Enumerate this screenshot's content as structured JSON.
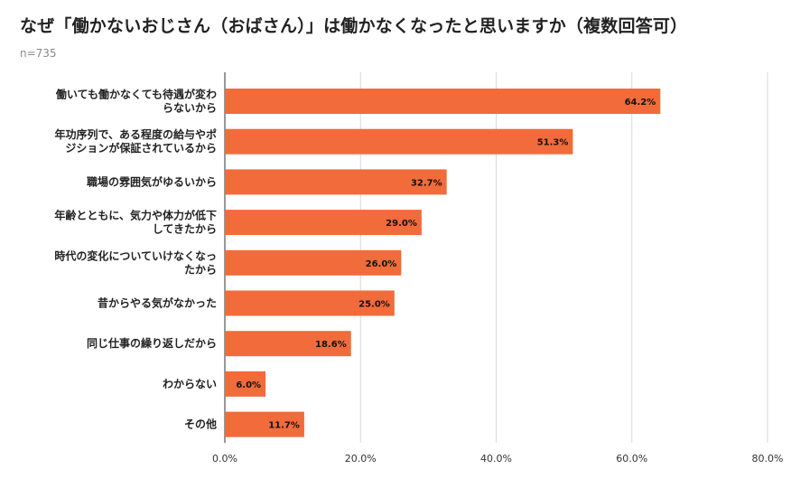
{
  "chart_data": {
    "type": "bar",
    "orientation": "horizontal",
    "title": "なぜ「働かないおじさん（おばさん）」は働かなくなったと思いますか（複数回答可）",
    "subtitle": "n=735",
    "categories": [
      [
        "働いても働かなくても待遇が変わ",
        "らないから"
      ],
      [
        "年功序列で、ある程度の給与やポ",
        "ジションが保証されているから"
      ],
      [
        "職場の雰囲気がゆるいから"
      ],
      [
        "年齢とともに、気力や体力が低下",
        "してきたから"
      ],
      [
        "時代の変化についていけなくなっ",
        "たから"
      ],
      [
        "昔からやる気がなかった"
      ],
      [
        "同じ仕事の繰り返しだから"
      ],
      [
        "わからない"
      ],
      [
        "その他"
      ]
    ],
    "values": [
      64.2,
      51.3,
      32.7,
      29.0,
      26.0,
      25.0,
      18.6,
      6.0,
      11.7
    ],
    "value_labels": [
      "64.2%",
      "51.3%",
      "32.7%",
      "29.0%",
      "26.0%",
      "25.0%",
      "18.6%",
      "6.0%",
      "11.7%"
    ],
    "xlim": [
      0,
      80
    ],
    "ticks": [
      0,
      20,
      40,
      60,
      80
    ],
    "tick_labels": [
      "0.0%",
      "20.0%",
      "40.0%",
      "60.0%",
      "80.0%"
    ],
    "grid": true,
    "bar_color": "#f26b3a",
    "grid_color": "#d9d9d9"
  }
}
